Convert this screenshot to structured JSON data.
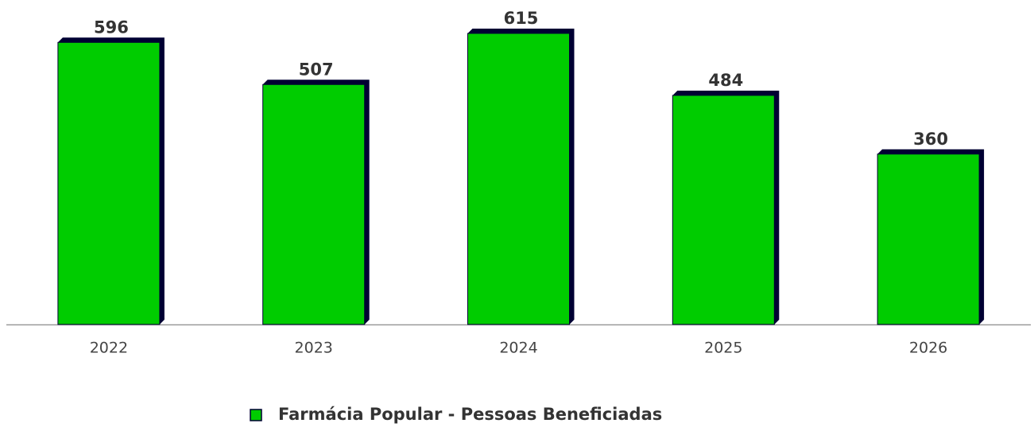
{
  "chart_data": {
    "type": "bar",
    "categories": [
      "2022",
      "2023",
      "2024",
      "2025",
      "2026"
    ],
    "series": [
      {
        "name": "Farmácia Popular - Pessoas Beneficiadas",
        "color": "#00cc00",
        "values": [
          596,
          507,
          615,
          484,
          360
        ]
      }
    ]
  }
}
